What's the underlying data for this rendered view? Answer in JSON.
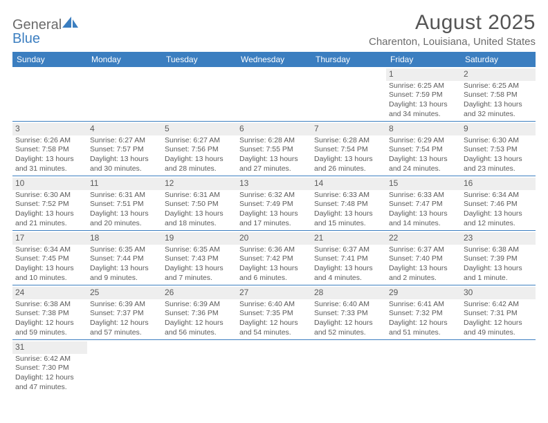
{
  "brand": {
    "word1": "General",
    "word2": "Blue",
    "sail_fill": "#3b7ec0",
    "text_color": "#6a6a6a"
  },
  "title": "August 2025",
  "location": "Charenton, Louisiana, United States",
  "colors": {
    "header_bg": "#3b7ec0",
    "rule": "#3b7ec0",
    "daynum_bg": "#eeeeee",
    "text": "#5a5a5a",
    "bg": "#ffffff"
  },
  "typography": {
    "title_fontsize": 30,
    "location_fontsize": 15,
    "dayheader_fontsize": 12,
    "daynum_fontsize": 12,
    "body_fontsize": 10.5
  },
  "day_headers": [
    "Sunday",
    "Monday",
    "Tuesday",
    "Wednesday",
    "Thursday",
    "Friday",
    "Saturday"
  ],
  "weeks": [
    [
      {
        "n": "",
        "empty": true
      },
      {
        "n": "",
        "empty": true
      },
      {
        "n": "",
        "empty": true
      },
      {
        "n": "",
        "empty": true
      },
      {
        "n": "",
        "empty": true
      },
      {
        "n": "1",
        "sunrise": "Sunrise: 6:25 AM",
        "sunset": "Sunset: 7:59 PM",
        "daylight": "Daylight: 13 hours and 34 minutes."
      },
      {
        "n": "2",
        "sunrise": "Sunrise: 6:25 AM",
        "sunset": "Sunset: 7:58 PM",
        "daylight": "Daylight: 13 hours and 32 minutes."
      }
    ],
    [
      {
        "n": "3",
        "sunrise": "Sunrise: 6:26 AM",
        "sunset": "Sunset: 7:58 PM",
        "daylight": "Daylight: 13 hours and 31 minutes."
      },
      {
        "n": "4",
        "sunrise": "Sunrise: 6:27 AM",
        "sunset": "Sunset: 7:57 PM",
        "daylight": "Daylight: 13 hours and 30 minutes."
      },
      {
        "n": "5",
        "sunrise": "Sunrise: 6:27 AM",
        "sunset": "Sunset: 7:56 PM",
        "daylight": "Daylight: 13 hours and 28 minutes."
      },
      {
        "n": "6",
        "sunrise": "Sunrise: 6:28 AM",
        "sunset": "Sunset: 7:55 PM",
        "daylight": "Daylight: 13 hours and 27 minutes."
      },
      {
        "n": "7",
        "sunrise": "Sunrise: 6:28 AM",
        "sunset": "Sunset: 7:54 PM",
        "daylight": "Daylight: 13 hours and 26 minutes."
      },
      {
        "n": "8",
        "sunrise": "Sunrise: 6:29 AM",
        "sunset": "Sunset: 7:54 PM",
        "daylight": "Daylight: 13 hours and 24 minutes."
      },
      {
        "n": "9",
        "sunrise": "Sunrise: 6:30 AM",
        "sunset": "Sunset: 7:53 PM",
        "daylight": "Daylight: 13 hours and 23 minutes."
      }
    ],
    [
      {
        "n": "10",
        "sunrise": "Sunrise: 6:30 AM",
        "sunset": "Sunset: 7:52 PM",
        "daylight": "Daylight: 13 hours and 21 minutes."
      },
      {
        "n": "11",
        "sunrise": "Sunrise: 6:31 AM",
        "sunset": "Sunset: 7:51 PM",
        "daylight": "Daylight: 13 hours and 20 minutes."
      },
      {
        "n": "12",
        "sunrise": "Sunrise: 6:31 AM",
        "sunset": "Sunset: 7:50 PM",
        "daylight": "Daylight: 13 hours and 18 minutes."
      },
      {
        "n": "13",
        "sunrise": "Sunrise: 6:32 AM",
        "sunset": "Sunset: 7:49 PM",
        "daylight": "Daylight: 13 hours and 17 minutes."
      },
      {
        "n": "14",
        "sunrise": "Sunrise: 6:33 AM",
        "sunset": "Sunset: 7:48 PM",
        "daylight": "Daylight: 13 hours and 15 minutes."
      },
      {
        "n": "15",
        "sunrise": "Sunrise: 6:33 AM",
        "sunset": "Sunset: 7:47 PM",
        "daylight": "Daylight: 13 hours and 14 minutes."
      },
      {
        "n": "16",
        "sunrise": "Sunrise: 6:34 AM",
        "sunset": "Sunset: 7:46 PM",
        "daylight": "Daylight: 13 hours and 12 minutes."
      }
    ],
    [
      {
        "n": "17",
        "sunrise": "Sunrise: 6:34 AM",
        "sunset": "Sunset: 7:45 PM",
        "daylight": "Daylight: 13 hours and 10 minutes."
      },
      {
        "n": "18",
        "sunrise": "Sunrise: 6:35 AM",
        "sunset": "Sunset: 7:44 PM",
        "daylight": "Daylight: 13 hours and 9 minutes."
      },
      {
        "n": "19",
        "sunrise": "Sunrise: 6:35 AM",
        "sunset": "Sunset: 7:43 PM",
        "daylight": "Daylight: 13 hours and 7 minutes."
      },
      {
        "n": "20",
        "sunrise": "Sunrise: 6:36 AM",
        "sunset": "Sunset: 7:42 PM",
        "daylight": "Daylight: 13 hours and 6 minutes."
      },
      {
        "n": "21",
        "sunrise": "Sunrise: 6:37 AM",
        "sunset": "Sunset: 7:41 PM",
        "daylight": "Daylight: 13 hours and 4 minutes."
      },
      {
        "n": "22",
        "sunrise": "Sunrise: 6:37 AM",
        "sunset": "Sunset: 7:40 PM",
        "daylight": "Daylight: 13 hours and 2 minutes."
      },
      {
        "n": "23",
        "sunrise": "Sunrise: 6:38 AM",
        "sunset": "Sunset: 7:39 PM",
        "daylight": "Daylight: 13 hours and 1 minute."
      }
    ],
    [
      {
        "n": "24",
        "sunrise": "Sunrise: 6:38 AM",
        "sunset": "Sunset: 7:38 PM",
        "daylight": "Daylight: 12 hours and 59 minutes."
      },
      {
        "n": "25",
        "sunrise": "Sunrise: 6:39 AM",
        "sunset": "Sunset: 7:37 PM",
        "daylight": "Daylight: 12 hours and 57 minutes."
      },
      {
        "n": "26",
        "sunrise": "Sunrise: 6:39 AM",
        "sunset": "Sunset: 7:36 PM",
        "daylight": "Daylight: 12 hours and 56 minutes."
      },
      {
        "n": "27",
        "sunrise": "Sunrise: 6:40 AM",
        "sunset": "Sunset: 7:35 PM",
        "daylight": "Daylight: 12 hours and 54 minutes."
      },
      {
        "n": "28",
        "sunrise": "Sunrise: 6:40 AM",
        "sunset": "Sunset: 7:33 PM",
        "daylight": "Daylight: 12 hours and 52 minutes."
      },
      {
        "n": "29",
        "sunrise": "Sunrise: 6:41 AM",
        "sunset": "Sunset: 7:32 PM",
        "daylight": "Daylight: 12 hours and 51 minutes."
      },
      {
        "n": "30",
        "sunrise": "Sunrise: 6:42 AM",
        "sunset": "Sunset: 7:31 PM",
        "daylight": "Daylight: 12 hours and 49 minutes."
      }
    ],
    [
      {
        "n": "31",
        "sunrise": "Sunrise: 6:42 AM",
        "sunset": "Sunset: 7:30 PM",
        "daylight": "Daylight: 12 hours and 47 minutes."
      },
      {
        "n": "",
        "empty": true
      },
      {
        "n": "",
        "empty": true
      },
      {
        "n": "",
        "empty": true
      },
      {
        "n": "",
        "empty": true
      },
      {
        "n": "",
        "empty": true
      },
      {
        "n": "",
        "empty": true
      }
    ]
  ]
}
